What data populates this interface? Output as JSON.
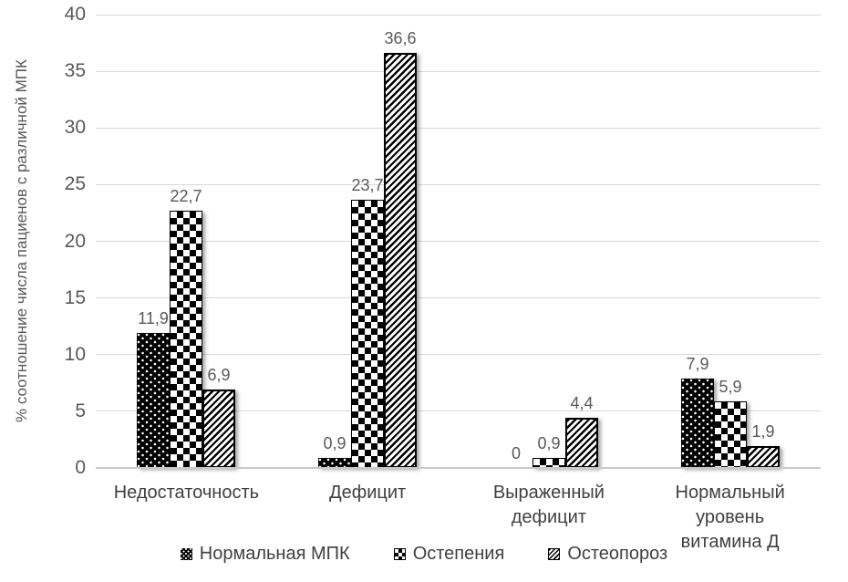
{
  "chart_data": {
    "type": "bar",
    "title": "",
    "xlabel": "",
    "ylabel": "% соотношение числа пациенов с различной МПК",
    "ylim": [
      0,
      40
    ],
    "ytick_step": 5,
    "grid": true,
    "legend_position": "bottom",
    "categories": [
      "Недостаточность",
      "Дефицит",
      "Выраженный дефицит",
      "Нормальный уровень витамина Д"
    ],
    "categories_display": [
      "Недостаточность",
      "Дефицит",
      "Выраженный\nдефицит",
      "Нормальный уровень\nвитамина Д"
    ],
    "series": [
      {
        "name": "Нормальная МПК",
        "pattern": "white-dots-on-black",
        "values": [
          11.9,
          0.9,
          0,
          7.9
        ],
        "labels": [
          "11,9",
          "0,9",
          "0",
          "7,9"
        ]
      },
      {
        "name": "Остепения",
        "pattern": "checkerboard",
        "values": [
          22.7,
          23.7,
          0.9,
          5.9
        ],
        "labels": [
          "22,7",
          "23,7",
          "0,9",
          "5,9"
        ]
      },
      {
        "name": "Остеопороз",
        "pattern": "diagonal-stripes",
        "values": [
          6.9,
          36.6,
          4.4,
          1.9
        ],
        "labels": [
          "6,9",
          "36,6",
          "4,4",
          "1,9"
        ]
      }
    ],
    "colors": {
      "bar_fill_black": "#000000",
      "bar_fill_white": "#ffffff",
      "gridline": "#d9d9d9",
      "axis_line": "#c9c9c9",
      "tick_text": "#595959",
      "data_label_text": "#595959",
      "category_text": "#404040",
      "legend_text": "#404040",
      "background": "#ffffff"
    }
  }
}
